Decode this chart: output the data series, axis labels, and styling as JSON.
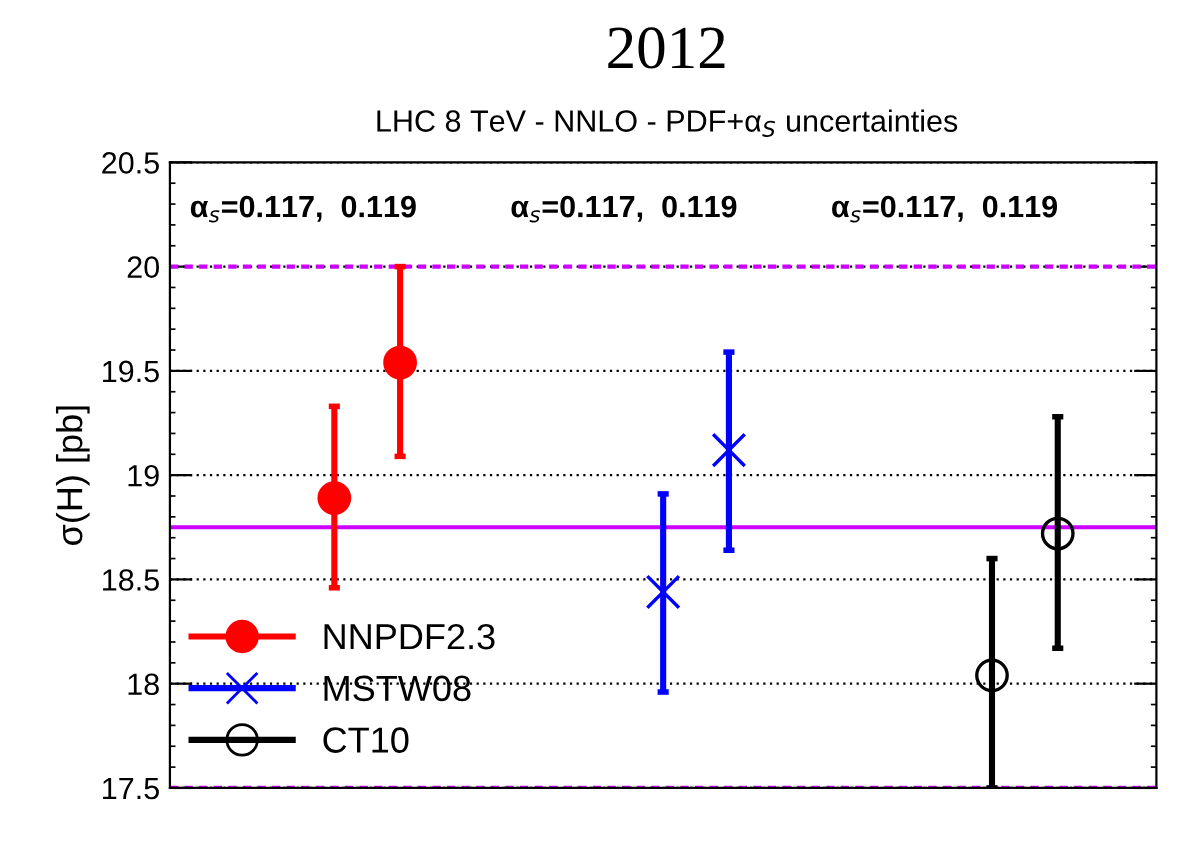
{
  "chart_data": {
    "type": "scatter",
    "title": "2012",
    "subtitle": "LHC 8 TeV - NNLO - PDF+α$_{S}$ uncertainties",
    "ylabel": "σ(H) [pb]",
    "annotations": [
      "α$_{s}$=0.117,  0.119",
      "α$_{s}$=0.117,  0.119",
      "α$_{s}$=0.117,  0.119"
    ],
    "categories": [
      null,
      null,
      null,
      null,
      null,
      null,
      null,
      null,
      null,
      null,
      null,
      null,
      null,
      null,
      null
    ],
    "ylim": [
      17.5,
      20.5
    ],
    "yticks": [
      17.5,
      18,
      18.5,
      19,
      19.5,
      20,
      20.5
    ],
    "tick_labels": "y",
    "grid": "y",
    "legend": "bottom left",
    "line_style": "solid",
    "series": [
      {
        "name": "NNPDF2.3",
        "color": "#ff0000",
        "marker": "circle",
        "values": [
          null,
          null,
          18.89,
          19.54,
          null,
          null,
          null,
          null,
          null,
          null,
          null,
          null,
          null,
          null,
          null
        ],
        "errors": [
          null,
          null,
          [
            18.46,
            19.33
          ],
          [
            19.09,
            20.0
          ],
          null,
          null,
          null,
          null,
          null,
          null,
          null,
          null,
          null,
          null,
          null
        ]
      },
      {
        "name": "MSTW08",
        "color": "#0000ff",
        "marker": "cross",
        "values": [
          null,
          null,
          null,
          null,
          null,
          null,
          null,
          18.44,
          19.12,
          null,
          null,
          null,
          null,
          null,
          null
        ],
        "errors": [
          null,
          null,
          null,
          null,
          null,
          null,
          null,
          [
            17.96,
            18.91
          ],
          [
            18.64,
            19.59
          ],
          null,
          null,
          null,
          null,
          null,
          null
        ]
      },
      {
        "name": "CT10",
        "color": "#000000",
        "marker": "circle",
        "values": [
          null,
          null,
          null,
          null,
          null,
          null,
          null,
          null,
          null,
          null,
          null,
          null,
          18.04,
          18.72,
          null
        ],
        "errors": [
          null,
          null,
          null,
          null,
          null,
          null,
          null,
          null,
          null,
          null,
          null,
          null,
          [
            17.5,
            18.6
          ],
          [
            18.17,
            19.28
          ],
          null
        ]
      }
    ],
    "ref_lines": [
      {
        "axis": "y",
        "value": 18.75,
        "color": "#cc00ff",
        "line_style": "solid"
      },
      {
        "axis": "y",
        "value": 20,
        "color": "#cc00ff",
        "line_style": "dashed"
      },
      {
        "axis": "y",
        "value": 17.5,
        "color": "#cc00ff",
        "line_style": "dashed"
      }
    ]
  }
}
